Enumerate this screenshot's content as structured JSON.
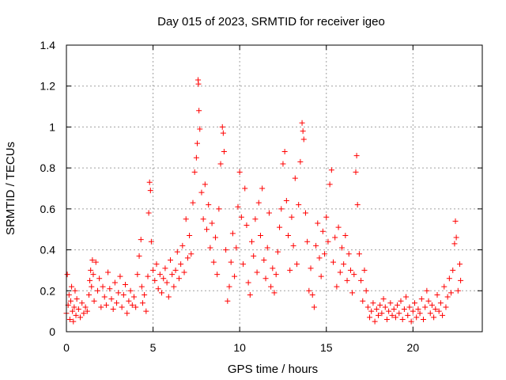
{
  "chart_data": {
    "type": "scatter",
    "title": "Day 015 of 2023, SRMTID for receiver igeo",
    "xlabel": "GPS time / hours",
    "ylabel": "SRMTID / TECUs",
    "xlim": [
      0,
      24
    ],
    "ylim": [
      0,
      1.4
    ],
    "xticks": [
      0,
      5,
      10,
      15,
      20
    ],
    "xtick_labels": [
      "0",
      "5",
      "10",
      "15",
      "20"
    ],
    "yticks": [
      0,
      0.2,
      0.4,
      0.6,
      0.8,
      1.0,
      1.2,
      1.4
    ],
    "ytick_labels": [
      "0",
      "0.2",
      "0.4",
      "0.6",
      "0.8",
      "1",
      "1.2",
      "1.4"
    ],
    "grid": true,
    "marker": "+",
    "colors": {
      "points": "#ff0000",
      "frame": "#000000",
      "grid": "#a0a0a0"
    },
    "series": [
      {
        "name": "SRMTID",
        "points": [
          [
            0.0,
            0.09
          ],
          [
            0.05,
            0.28
          ],
          [
            0.1,
            0.13
          ],
          [
            0.15,
            0.18
          ],
          [
            0.2,
            0.06
          ],
          [
            0.25,
            0.15
          ],
          [
            0.3,
            0.22
          ],
          [
            0.35,
            0.1
          ],
          [
            0.4,
            0.05
          ],
          [
            0.45,
            0.12
          ],
          [
            0.5,
            0.2
          ],
          [
            0.55,
            0.08
          ],
          [
            0.6,
            0.16
          ],
          [
            0.7,
            0.11
          ],
          [
            0.8,
            0.07
          ],
          [
            0.9,
            0.14
          ],
          [
            1.0,
            0.09
          ],
          [
            1.1,
            0.12
          ],
          [
            1.2,
            0.1
          ],
          [
            1.3,
            0.18
          ],
          [
            1.35,
            0.25
          ],
          [
            1.4,
            0.3
          ],
          [
            1.45,
            0.22
          ],
          [
            1.5,
            0.35
          ],
          [
            1.55,
            0.28
          ],
          [
            1.6,
            0.15
          ],
          [
            1.7,
            0.34
          ],
          [
            1.8,
            0.2
          ],
          [
            1.9,
            0.26
          ],
          [
            2.0,
            0.12
          ],
          [
            2.1,
            0.22
          ],
          [
            2.2,
            0.17
          ],
          [
            2.3,
            0.13
          ],
          [
            2.4,
            0.29
          ],
          [
            2.5,
            0.21
          ],
          [
            2.6,
            0.16
          ],
          [
            2.7,
            0.11
          ],
          [
            2.8,
            0.24
          ],
          [
            2.9,
            0.14
          ],
          [
            3.0,
            0.19
          ],
          [
            3.1,
            0.27
          ],
          [
            3.2,
            0.12
          ],
          [
            3.3,
            0.18
          ],
          [
            3.4,
            0.23
          ],
          [
            3.5,
            0.09
          ],
          [
            3.6,
            0.15
          ],
          [
            3.7,
            0.2
          ],
          [
            3.8,
            0.13
          ],
          [
            3.9,
            0.17
          ],
          [
            4.0,
            0.12
          ],
          [
            4.1,
            0.28
          ],
          [
            4.2,
            0.37
          ],
          [
            4.3,
            0.45
          ],
          [
            4.35,
            0.22
          ],
          [
            4.4,
            0.14
          ],
          [
            4.5,
            0.18
          ],
          [
            4.6,
            0.1
          ],
          [
            4.7,
            0.27
          ],
          [
            4.75,
            0.58
          ],
          [
            4.8,
            0.73
          ],
          [
            4.85,
            0.69
          ],
          [
            4.9,
            0.44
          ],
          [
            5.0,
            0.3
          ],
          [
            5.1,
            0.25
          ],
          [
            5.2,
            0.33
          ],
          [
            5.3,
            0.21
          ],
          [
            5.4,
            0.28
          ],
          [
            5.5,
            0.19
          ],
          [
            5.6,
            0.26
          ],
          [
            5.7,
            0.31
          ],
          [
            5.8,
            0.24
          ],
          [
            5.9,
            0.17
          ],
          [
            6.0,
            0.35
          ],
          [
            6.1,
            0.28
          ],
          [
            6.2,
            0.22
          ],
          [
            6.3,
            0.3
          ],
          [
            6.4,
            0.39
          ],
          [
            6.5,
            0.26
          ],
          [
            6.6,
            0.33
          ],
          [
            6.7,
            0.42
          ],
          [
            6.8,
            0.29
          ],
          [
            6.9,
            0.55
          ],
          [
            7.0,
            0.36
          ],
          [
            7.1,
            0.47
          ],
          [
            7.2,
            0.38
          ],
          [
            7.3,
            0.63
          ],
          [
            7.4,
            0.78
          ],
          [
            7.5,
            0.85
          ],
          [
            7.55,
            0.92
          ],
          [
            7.6,
            1.23
          ],
          [
            7.62,
            1.21
          ],
          [
            7.65,
            1.08
          ],
          [
            7.7,
            0.99
          ],
          [
            7.8,
            0.68
          ],
          [
            7.9,
            0.55
          ],
          [
            8.0,
            0.72
          ],
          [
            8.1,
            0.5
          ],
          [
            8.2,
            0.62
          ],
          [
            8.3,
            0.41
          ],
          [
            8.4,
            0.53
          ],
          [
            8.5,
            0.34
          ],
          [
            8.6,
            0.46
          ],
          [
            8.7,
            0.28
          ],
          [
            8.8,
            0.6
          ],
          [
            8.9,
            0.82
          ],
          [
            9.0,
            1.0
          ],
          [
            9.05,
            0.97
          ],
          [
            9.1,
            0.88
          ],
          [
            9.2,
            0.4
          ],
          [
            9.3,
            0.15
          ],
          [
            9.4,
            0.22
          ],
          [
            9.5,
            0.34
          ],
          [
            9.6,
            0.48
          ],
          [
            9.7,
            0.27
          ],
          [
            9.8,
            0.41
          ],
          [
            9.9,
            0.61
          ],
          [
            10.0,
            0.78
          ],
          [
            10.1,
            0.56
          ],
          [
            10.2,
            0.33
          ],
          [
            10.3,
            0.7
          ],
          [
            10.4,
            0.52
          ],
          [
            10.5,
            0.24
          ],
          [
            10.6,
            0.18
          ],
          [
            10.7,
            0.44
          ],
          [
            10.8,
            0.37
          ],
          [
            10.9,
            0.55
          ],
          [
            11.0,
            0.29
          ],
          [
            11.1,
            0.63
          ],
          [
            11.2,
            0.47
          ],
          [
            11.3,
            0.7
          ],
          [
            11.4,
            0.35
          ],
          [
            11.5,
            0.26
          ],
          [
            11.6,
            0.41
          ],
          [
            11.7,
            0.58
          ],
          [
            11.8,
            0.22
          ],
          [
            11.9,
            0.31
          ],
          [
            12.0,
            0.19
          ],
          [
            12.1,
            0.28
          ],
          [
            12.2,
            0.39
          ],
          [
            12.3,
            0.51
          ],
          [
            12.4,
            0.6
          ],
          [
            12.5,
            0.82
          ],
          [
            12.6,
            0.88
          ],
          [
            12.7,
            0.64
          ],
          [
            12.8,
            0.47
          ],
          [
            12.9,
            0.3
          ],
          [
            13.0,
            0.56
          ],
          [
            13.1,
            0.42
          ],
          [
            13.2,
            0.75
          ],
          [
            13.3,
            0.33
          ],
          [
            13.4,
            0.62
          ],
          [
            13.5,
            0.83
          ],
          [
            13.6,
            1.02
          ],
          [
            13.65,
            0.98
          ],
          [
            13.7,
            0.94
          ],
          [
            13.8,
            0.58
          ],
          [
            13.9,
            0.44
          ],
          [
            14.0,
            0.2
          ],
          [
            14.1,
            0.31
          ],
          [
            14.2,
            0.18
          ],
          [
            14.3,
            0.12
          ],
          [
            14.4,
            0.42
          ],
          [
            14.5,
            0.53
          ],
          [
            14.6,
            0.36
          ],
          [
            14.7,
            0.27
          ],
          [
            14.8,
            0.49
          ],
          [
            14.9,
            0.38
          ],
          [
            15.0,
            0.56
          ],
          [
            15.1,
            0.44
          ],
          [
            15.2,
            0.72
          ],
          [
            15.3,
            0.79
          ],
          [
            15.4,
            0.34
          ],
          [
            15.5,
            0.46
          ],
          [
            15.6,
            0.22
          ],
          [
            15.7,
            0.51
          ],
          [
            15.8,
            0.29
          ],
          [
            15.9,
            0.41
          ],
          [
            16.0,
            0.33
          ],
          [
            16.1,
            0.47
          ],
          [
            16.2,
            0.25
          ],
          [
            16.3,
            0.38
          ],
          [
            16.4,
            0.3
          ],
          [
            16.5,
            0.19
          ],
          [
            16.6,
            0.28
          ],
          [
            16.7,
            0.78
          ],
          [
            16.75,
            0.86
          ],
          [
            16.8,
            0.62
          ],
          [
            16.9,
            0.38
          ],
          [
            17.0,
            0.25
          ],
          [
            17.1,
            0.15
          ],
          [
            17.2,
            0.3
          ],
          [
            17.3,
            0.2
          ],
          [
            17.4,
            0.12
          ],
          [
            17.5,
            0.07
          ],
          [
            17.6,
            0.1
          ],
          [
            17.7,
            0.14
          ],
          [
            17.8,
            0.05
          ],
          [
            17.9,
            0.11
          ],
          [
            18.0,
            0.08
          ],
          [
            18.1,
            0.13
          ],
          [
            18.2,
            0.09
          ],
          [
            18.3,
            0.16
          ],
          [
            18.4,
            0.12
          ],
          [
            18.5,
            0.06
          ],
          [
            18.6,
            0.1
          ],
          [
            18.7,
            0.14
          ],
          [
            18.8,
            0.08
          ],
          [
            18.9,
            0.11
          ],
          [
            19.0,
            0.07
          ],
          [
            19.1,
            0.13
          ],
          [
            19.2,
            0.09
          ],
          [
            19.3,
            0.15
          ],
          [
            19.4,
            0.06
          ],
          [
            19.5,
            0.11
          ],
          [
            19.6,
            0.17
          ],
          [
            19.7,
            0.08
          ],
          [
            19.8,
            0.12
          ],
          [
            19.9,
            0.05
          ],
          [
            20.0,
            0.1
          ],
          [
            20.1,
            0.14
          ],
          [
            20.2,
            0.07
          ],
          [
            20.3,
            0.11
          ],
          [
            20.4,
            0.09
          ],
          [
            20.5,
            0.16
          ],
          [
            20.6,
            0.06
          ],
          [
            20.7,
            0.12
          ],
          [
            20.8,
            0.2
          ],
          [
            20.9,
            0.15
          ],
          [
            21.0,
            0.09
          ],
          [
            21.1,
            0.13
          ],
          [
            21.2,
            0.07
          ],
          [
            21.3,
            0.11
          ],
          [
            21.4,
            0.18
          ],
          [
            21.5,
            0.1
          ],
          [
            21.6,
            0.14
          ],
          [
            21.7,
            0.08
          ],
          [
            21.8,
            0.22
          ],
          [
            21.9,
            0.12
          ],
          [
            22.0,
            0.17
          ],
          [
            22.1,
            0.26
          ],
          [
            22.2,
            0.19
          ],
          [
            22.3,
            0.3
          ],
          [
            22.4,
            0.43
          ],
          [
            22.45,
            0.54
          ],
          [
            22.5,
            0.46
          ],
          [
            22.6,
            0.2
          ],
          [
            22.7,
            0.33
          ],
          [
            22.75,
            0.25
          ]
        ]
      }
    ]
  }
}
